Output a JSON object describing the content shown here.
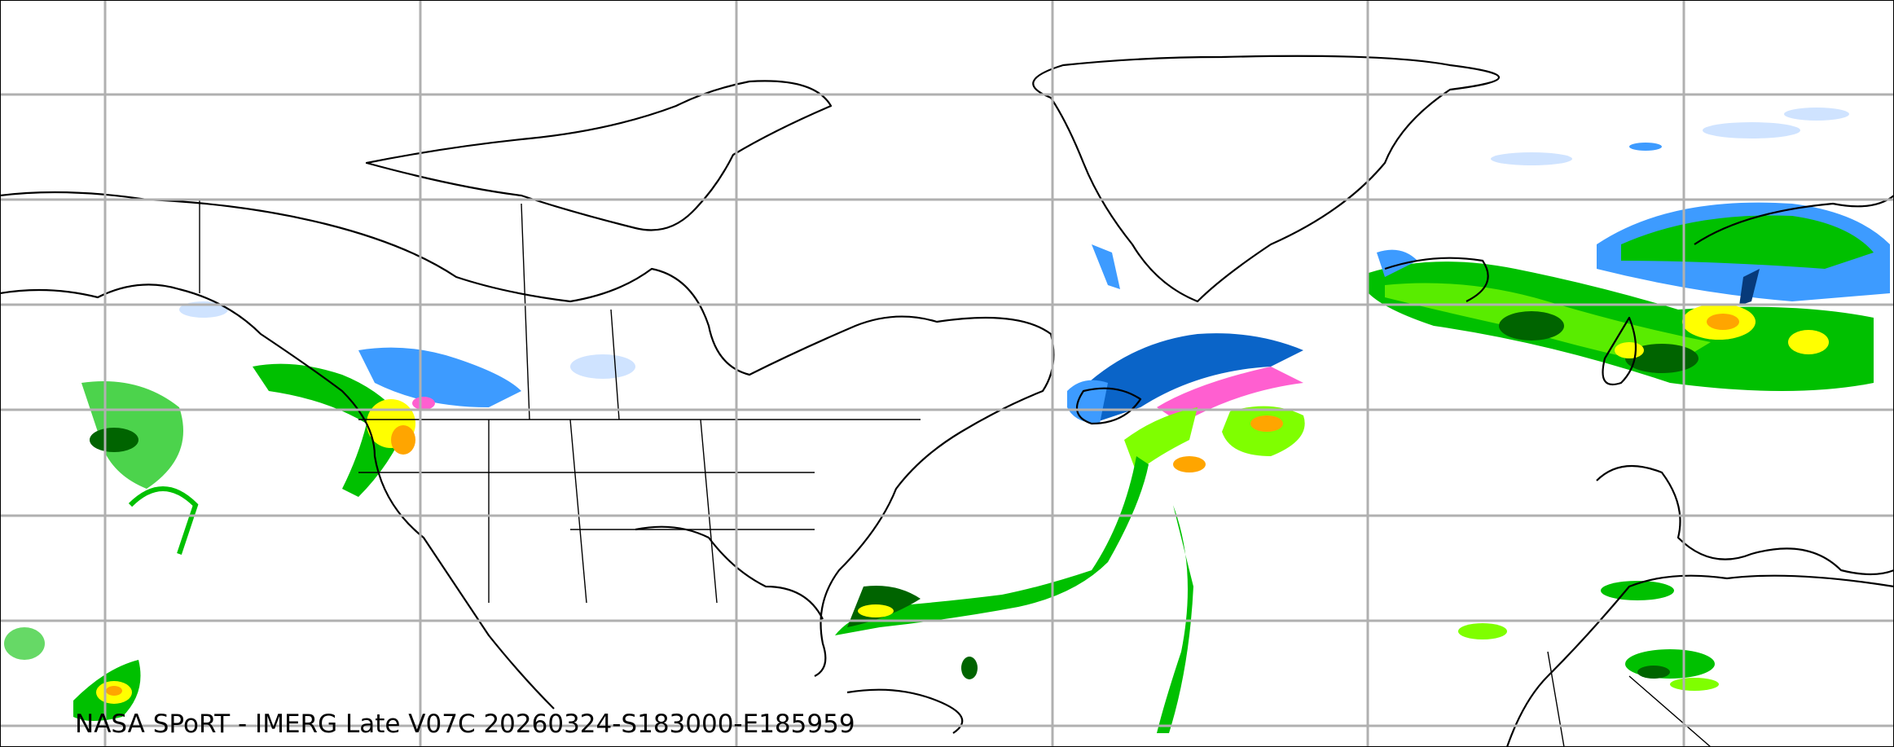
{
  "map": {
    "caption": "NASA SPoRT - IMERG Late V07C 20260324-S183000-E185959",
    "product": "IMERG Late V07C",
    "gridlines": true,
    "colors": {
      "rain_dark_green": "#006400",
      "rain_green": "#00c000",
      "rain_light_green": "#7fff00",
      "rain_yellow": "#ffff00",
      "rain_orange": "#ffa500",
      "rain_red": "#ff0000",
      "snow_light_blue": "#cfe3ff",
      "snow_blue": "#3d9bff",
      "snow_dark_blue": "#0a64c8",
      "snow_navy": "#073a7a",
      "mixed_pink": "#ff5fd0",
      "grid": "#b0b0b0"
    }
  }
}
